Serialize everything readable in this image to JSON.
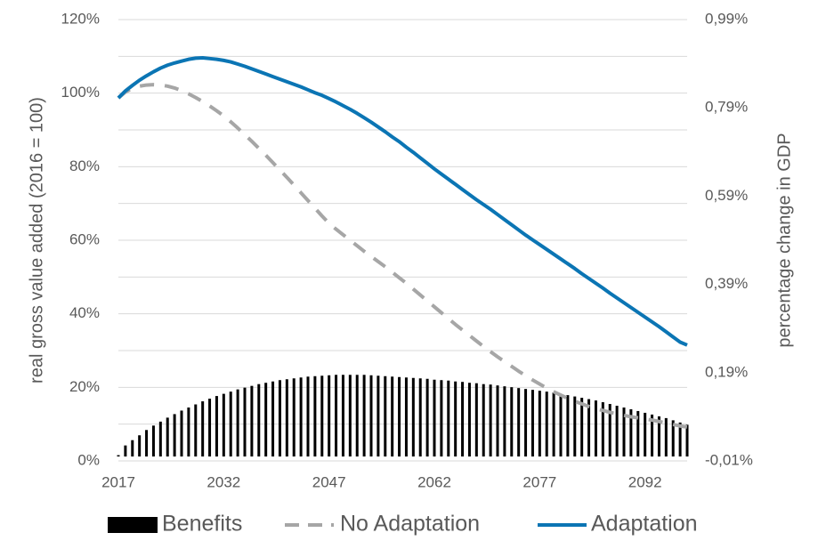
{
  "chart_data": {
    "type": "combo",
    "y_label": "real gross value added (2016 = 100)",
    "y2_label": "percentage change in GDP",
    "x": [
      2017,
      2018,
      2019,
      2020,
      2021,
      2022,
      2023,
      2024,
      2025,
      2026,
      2027,
      2028,
      2029,
      2030,
      2031,
      2032,
      2033,
      2034,
      2035,
      2036,
      2037,
      2038,
      2039,
      2040,
      2041,
      2042,
      2043,
      2044,
      2045,
      2046,
      2047,
      2048,
      2049,
      2050,
      2051,
      2052,
      2053,
      2054,
      2055,
      2056,
      2057,
      2058,
      2059,
      2060,
      2061,
      2062,
      2063,
      2064,
      2065,
      2066,
      2067,
      2068,
      2069,
      2070,
      2071,
      2072,
      2073,
      2074,
      2075,
      2076,
      2077,
      2078,
      2079,
      2080,
      2081,
      2082,
      2083,
      2084,
      2085,
      2086,
      2087,
      2088,
      2089,
      2090,
      2091,
      2092,
      2093,
      2094,
      2095,
      2096,
      2097,
      2098
    ],
    "xlim": [
      2017,
      2098
    ],
    "xticks": [
      2017,
      2032,
      2047,
      2062,
      2077,
      2092
    ],
    "ylim": [
      0,
      120
    ],
    "yticks": [
      {
        "value": 0,
        "label": "0%"
      },
      {
        "value": 20,
        "label": "20%"
      },
      {
        "value": 40,
        "label": "40%"
      },
      {
        "value": 60,
        "label": "60%"
      },
      {
        "value": 80,
        "label": "80%"
      },
      {
        "value": 100,
        "label": "100%"
      },
      {
        "value": 120,
        "label": "120%"
      }
    ],
    "yminorticks": [
      10,
      30,
      50,
      70,
      90,
      110
    ],
    "y2lim": [
      -0.01,
      0.99
    ],
    "y2ticks": [
      {
        "value": -0.01,
        "label": "-0,01%"
      },
      {
        "value": 0.19,
        "label": "0,19%"
      },
      {
        "value": 0.39,
        "label": "0,39%"
      },
      {
        "value": 0.59,
        "label": "0,59%"
      },
      {
        "value": 0.79,
        "label": "0,79%"
      },
      {
        "value": 0.99,
        "label": "0,99%"
      }
    ],
    "grid": true,
    "legend": "bottom",
    "series": [
      {
        "name": "Benefits",
        "type": "bar",
        "axis": "y2",
        "color": "#000000",
        "values": [
          0.003,
          0.025,
          0.037,
          0.048,
          0.06,
          0.07,
          0.079,
          0.088,
          0.096,
          0.104,
          0.111,
          0.118,
          0.125,
          0.131,
          0.137,
          0.142,
          0.147,
          0.152,
          0.156,
          0.16,
          0.164,
          0.167,
          0.17,
          0.173,
          0.175,
          0.177,
          0.179,
          0.181,
          0.182,
          0.183,
          0.184,
          0.185,
          0.185,
          0.185,
          0.185,
          0.185,
          0.184,
          0.183,
          0.182,
          0.181,
          0.18,
          0.179,
          0.178,
          0.177,
          0.176,
          0.174,
          0.173,
          0.172,
          0.17,
          0.169,
          0.167,
          0.166,
          0.164,
          0.163,
          0.161,
          0.159,
          0.157,
          0.155,
          0.153,
          0.151,
          0.149,
          0.147,
          0.145,
          0.142,
          0.139,
          0.136,
          0.133,
          0.13,
          0.127,
          0.123,
          0.119,
          0.115,
          0.111,
          0.107,
          0.103,
          0.099,
          0.095,
          0.091,
          0.087,
          0.082,
          0.077,
          0.072
        ]
      },
      {
        "name": "No Adaptation",
        "type": "line",
        "dashed": true,
        "color": "#a6a6a6",
        "values": [
          98.7,
          100.3,
          101.3,
          101.9,
          102.2,
          102.3,
          102.2,
          101.9,
          101.4,
          100.7,
          99.8,
          98.8,
          97.7,
          96.5,
          95.2,
          93.8,
          92.2,
          90.5,
          88.7,
          86.9,
          85.0,
          83.1,
          81.1,
          79.1,
          77.1,
          75.0,
          72.9,
          70.8,
          68.7,
          66.6,
          64.6,
          63.0,
          61.5,
          60.0,
          58.5,
          57.0,
          55.6,
          54.2,
          52.8,
          51.3,
          49.8,
          48.3,
          46.7,
          45.1,
          43.5,
          41.9,
          40.3,
          38.7,
          37.1,
          35.6,
          34.1,
          32.6,
          31.1,
          29.7,
          28.3,
          27.0,
          25.7,
          24.4,
          23.2,
          22.0,
          20.9,
          19.8,
          18.8,
          17.9,
          17.0,
          16.2,
          15.5,
          14.8,
          14.2,
          13.7,
          13.2,
          12.8,
          12.4,
          12.0,
          11.7,
          11.4,
          11.1,
          10.7,
          10.3,
          9.9,
          9.5,
          9.2
        ]
      },
      {
        "name": "Adaptation",
        "type": "line",
        "dashed": false,
        "color": "#0b75b4",
        "values": [
          98.7,
          100.6,
          102.1,
          103.5,
          104.7,
          105.8,
          106.8,
          107.6,
          108.2,
          108.7,
          109.2,
          109.5,
          109.6,
          109.4,
          109.2,
          108.9,
          108.5,
          107.9,
          107.3,
          106.6,
          105.9,
          105.2,
          104.5,
          103.8,
          103.1,
          102.4,
          101.7,
          100.9,
          100.1,
          99.4,
          98.5,
          97.6,
          96.6,
          95.6,
          94.5,
          93.3,
          92.1,
          90.8,
          89.5,
          88.1,
          86.8,
          85.3,
          83.9,
          82.4,
          80.9,
          79.4,
          78.0,
          76.6,
          75.2,
          73.8,
          72.4,
          71.0,
          69.7,
          68.4,
          67.0,
          65.6,
          64.2,
          62.8,
          61.4,
          60.1,
          58.8,
          57.5,
          56.2,
          54.9,
          53.6,
          52.3,
          50.9,
          49.6,
          48.3,
          47.0,
          45.6,
          44.3,
          43.0,
          41.7,
          40.4,
          39.1,
          37.8,
          36.5,
          35.1,
          33.7,
          32.3,
          31.5
        ]
      }
    ]
  }
}
